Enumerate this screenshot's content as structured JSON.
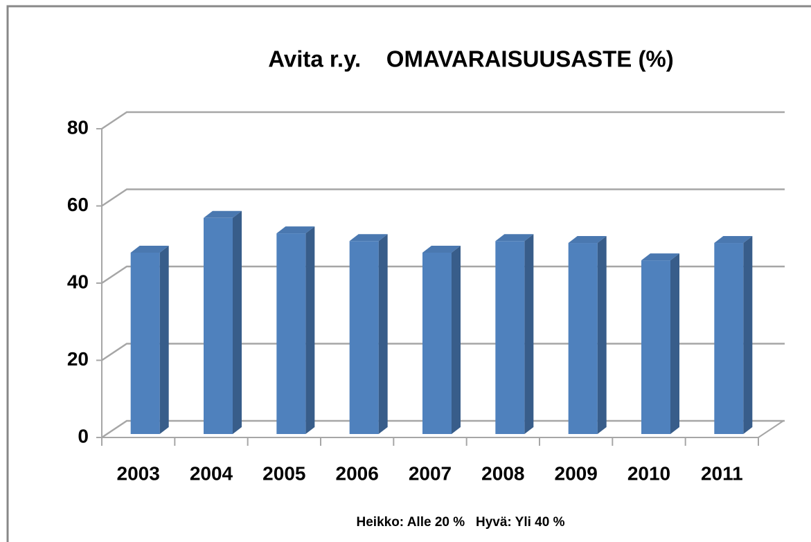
{
  "chart_data": {
    "type": "bar",
    "title": "Avita r.y.    OMAVARAISUUSASTE (%)",
    "categories": [
      "2003",
      "2004",
      "2005",
      "2006",
      "2007",
      "2008",
      "2009",
      "2010",
      "2011"
    ],
    "values": [
      47,
      56,
      52,
      50,
      47,
      50,
      49.5,
      45,
      49.5
    ],
    "color": "#4f81bd",
    "ylim": [
      0,
      80
    ],
    "yticks": [
      0,
      20,
      40,
      60,
      80
    ],
    "grid": true,
    "note": "Heikko: Alle 20 %   Hyvä: Yli 40 %"
  }
}
